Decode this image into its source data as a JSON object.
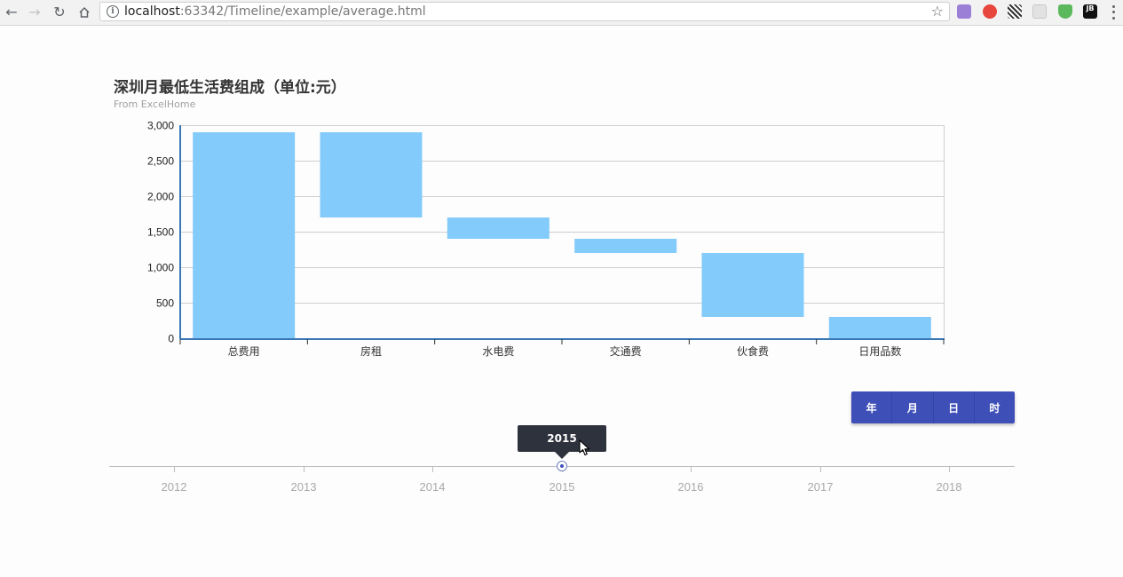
{
  "browser": {
    "url_host": "localhost",
    "url_rest": ":63342/Timeline/example/average.html",
    "nav_icons": [
      "back-icon",
      "forward-icon",
      "reload-icon",
      "home-icon"
    ],
    "extension_icons": [
      "chart-extension-icon",
      "red-hexagon-extension-icon",
      "qr-code-extension-icon",
      "reader-extension-icon",
      "green-shield-extension-icon",
      "jetbrains-extension-icon"
    ]
  },
  "chart": {
    "title": "深圳月最低生活费组成（单位:元）",
    "subtitle": "From ExcelHome"
  },
  "chart_data": {
    "type": "bar",
    "categories": [
      "总费用",
      "房租",
      "水电费",
      "交通费",
      "伙食费",
      "日用品数"
    ],
    "series": [
      {
        "values_low": [
          0,
          1700,
          1400,
          1200,
          300,
          0
        ],
        "values_high": [
          2900,
          2900,
          1700,
          1400,
          1200,
          300
        ]
      }
    ],
    "y_ticks": [
      "0",
      "500",
      "1,000",
      "1,500",
      "2,000",
      "2,500",
      "3,000"
    ],
    "ylim": [
      0,
      3000
    ],
    "grid": true,
    "bar_color": "#83cbfa",
    "axis_color": "#3a78b4"
  },
  "granularity": {
    "buttons": [
      "年",
      "月",
      "日",
      "时"
    ],
    "color": "#3f4fb8"
  },
  "timeline": {
    "years": [
      "2012",
      "2013",
      "2014",
      "2015",
      "2016",
      "2017",
      "2018"
    ],
    "selected": "2015",
    "tooltip": "2015"
  }
}
